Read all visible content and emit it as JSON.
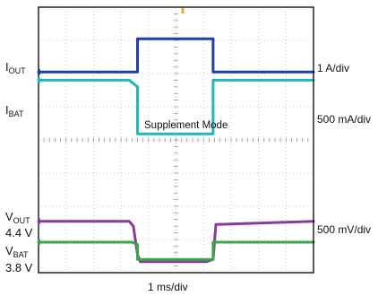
{
  "chart_data": {
    "type": "line",
    "title": "",
    "xlabel": "1 ms/div",
    "ylabel": "",
    "grid": true,
    "x_divisions": 10,
    "y_divisions": 8,
    "annotation": "Supplement Mode",
    "channels": [
      {
        "id": "iout",
        "name_main": "I",
        "name_sub": "OUT",
        "scale": "1 A/div",
        "color": "#1f3fa8",
        "x": [
          0,
          3.6,
          3.6,
          6.35,
          6.35,
          10
        ],
        "y": [
          6.05,
          6.05,
          7.05,
          7.05,
          6.05,
          6.05
        ]
      },
      {
        "id": "ibat",
        "name_main": "I",
        "name_sub": "BAT",
        "scale": "500 mA/div",
        "color": "#22b8b8",
        "x": [
          0,
          3.3,
          3.6,
          3.6,
          6.35,
          6.35,
          10
        ],
        "y": [
          5.8,
          5.8,
          5.6,
          4.18,
          4.18,
          5.8,
          5.8
        ]
      },
      {
        "id": "vout",
        "name_main": "V",
        "name_sub": "OUT",
        "value_label": "4.4 V",
        "scale": "500 mV/div",
        "color": "#8a3a9e",
        "x": [
          0,
          3.3,
          3.45,
          3.6,
          3.7,
          6.1,
          6.35,
          6.45,
          10
        ],
        "y": [
          1.55,
          1.55,
          1.4,
          0.55,
          0.33,
          0.33,
          0.4,
          1.45,
          1.55
        ]
      },
      {
        "id": "vbat",
        "name_main": "V",
        "name_sub": "BAT",
        "value_label": "3.8 V",
        "scale": "",
        "color": "#3aa64a",
        "x": [
          0,
          3.4,
          3.6,
          3.6,
          6.35,
          6.35,
          10
        ],
        "y": [
          0.92,
          0.92,
          0.85,
          0.4,
          0.4,
          0.92,
          0.92
        ]
      }
    ],
    "trigger_color": "#f5a623"
  }
}
